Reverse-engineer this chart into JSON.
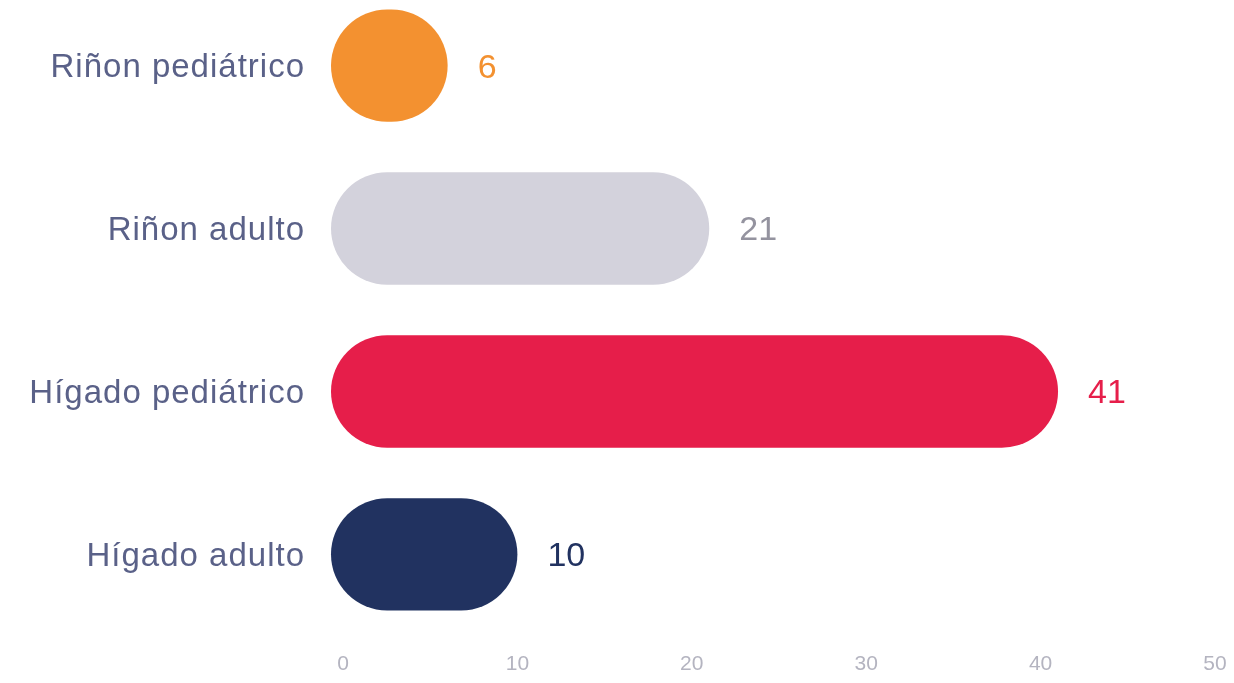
{
  "chart_data": {
    "type": "bar",
    "orientation": "horizontal",
    "categories": [
      "Riñon pediátrico",
      "Riñon adulto",
      "Hígado pediátrico",
      "Hígado adulto"
    ],
    "values": [
      6,
      21,
      41,
      10
    ],
    "colors": [
      "#f39130",
      "#d3d2dc",
      "#e61e4a",
      "#213260"
    ],
    "xlim": [
      0,
      50
    ],
    "xticks": [
      0,
      10,
      20,
      30,
      40,
      50
    ],
    "data_labels": true,
    "grid": false
  }
}
